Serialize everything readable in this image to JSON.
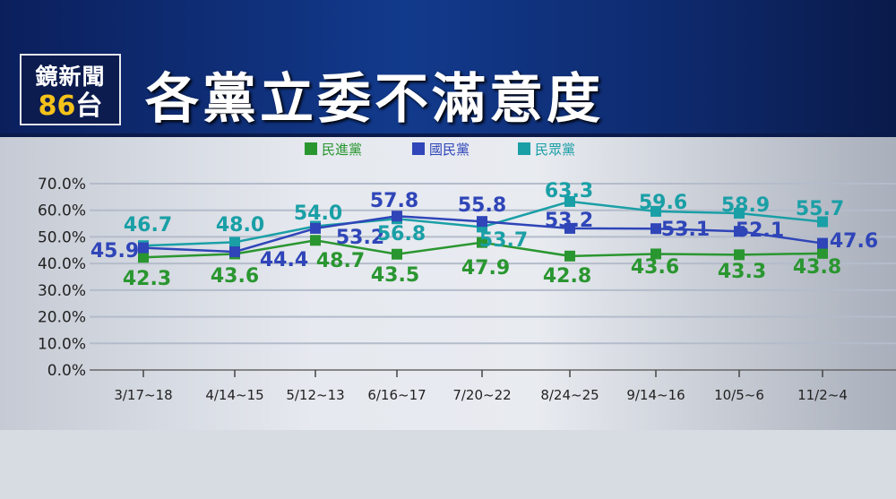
{
  "logo": {
    "line1": "鏡新聞",
    "line2_number": "86",
    "line2_text": "台"
  },
  "title": "各黨立委不滿意度",
  "chart_data": {
    "type": "line",
    "title": "各黨立委不滿意度",
    "categories": [
      "3/17~18",
      "4/14~15",
      "5/12~13",
      "6/16~17",
      "7/20~22",
      "8/24~25",
      "9/14~16",
      "10/5~6",
      "11/2~4"
    ],
    "yticks": [
      "0.0%",
      "10.0%",
      "20.0%",
      "30.0%",
      "40.0%",
      "50.0%",
      "60.0%",
      "70.0%"
    ],
    "ylim": [
      0,
      70
    ],
    "grid": true,
    "legend_placement": "top-center",
    "series": [
      {
        "name": "民進黨",
        "color": "#2a9630",
        "values": [
          42.3,
          43.6,
          48.7,
          43.5,
          47.9,
          42.8,
          43.6,
          43.3,
          43.8
        ]
      },
      {
        "name": "國民黨",
        "color": "#2f45b8",
        "values": [
          45.9,
          44.4,
          53.2,
          57.8,
          55.8,
          53.2,
          53.1,
          52.1,
          47.6
        ]
      },
      {
        "name": "民眾黨",
        "color": "#1a9fa6",
        "values": [
          46.7,
          48.0,
          54.0,
          56.8,
          53.7,
          63.3,
          59.6,
          58.9,
          55.7
        ]
      }
    ]
  }
}
